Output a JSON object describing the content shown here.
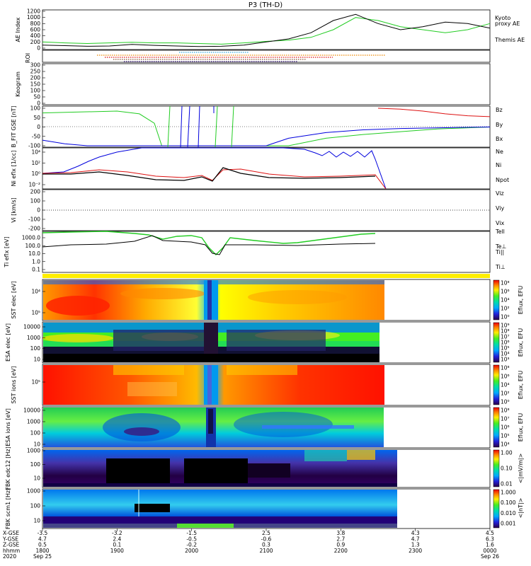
{
  "title": "P3 (TH-D)",
  "colors": {
    "red": "#dd1111",
    "green": "#22cc22",
    "blue": "#0000dd",
    "black": "#000000",
    "orange": "#ee8800",
    "purple": "#661199",
    "yellow": "#ffee00"
  },
  "panels": {
    "ae": {
      "ylabel": "AE Index",
      "legend": [
        {
          "text": "Kyoto",
          "color": "#22cc22"
        },
        {
          "text": "proxy AE",
          "color": "#22cc22"
        },
        {
          "text": "Themis AE",
          "color": "#000000"
        }
      ],
      "ticks": [
        "1200",
        "1000",
        "800",
        "600",
        "400",
        "200",
        "0"
      ]
    },
    "roi": {
      "ylabel": "ROI"
    },
    "keogram": {
      "ylabel": "Keogram",
      "ticks": [
        "300",
        "250",
        "200",
        "150",
        "100",
        "50",
        "0"
      ]
    },
    "bfit": {
      "ylabel": "B_FIT GSE [nT]",
      "ticks": [
        "100",
        "50",
        "0",
        "-50",
        "-100"
      ],
      "legend": [
        {
          "text": "Bz",
          "color": "#dd1111"
        },
        {
          "text": "By",
          "color": "#22cc22"
        },
        {
          "text": "Bx",
          "color": "#0000dd"
        }
      ]
    },
    "ni": {
      "ylabel": "Ni eflx [1/cc]",
      "ticks": [
        "10⁴",
        "10²",
        "10⁰",
        "10⁻²"
      ],
      "legend": [
        {
          "text": "Ne",
          "color": "#dd1111"
        },
        {
          "text": "Ni",
          "color": "#000000"
        },
        {
          "text": "Npot",
          "color": "#0000dd"
        }
      ]
    },
    "vi": {
      "ylabel": "Vi [km/s]",
      "ticks": [
        "200",
        "100",
        "0",
        "-100",
        "-200"
      ],
      "legend": [
        {
          "text": "Viz",
          "color": "#dd1111"
        },
        {
          "text": "Viy",
          "color": "#22cc22"
        },
        {
          "text": "Vix",
          "color": "#0000dd"
        }
      ]
    },
    "ti": {
      "ylabel": "Ti eflx [eV]",
      "ticks": [
        "1000.0",
        "100.0",
        "10.0",
        "1.0",
        "0.1"
      ],
      "legend": [
        {
          "text": "Tell",
          "color": "#000000"
        },
        {
          "text": "Te⊥",
          "color": "#dd1111"
        },
        {
          "text": "Ti||",
          "color": "#22cc22"
        },
        {
          "text": "Ti⊥",
          "color": "#0000dd"
        }
      ]
    },
    "sst_e": {
      "ylabel": "SST elec [eV]",
      "ticks": [
        "10⁴",
        "10⁵"
      ],
      "cbar_label": "Eflux, EFU",
      "cbar_ticks": [
        "10⁸",
        "10⁶",
        "10⁴",
        "10²",
        "10⁰"
      ]
    },
    "esa_e": {
      "ylabel": "ESA elec [eV]",
      "ticks": [
        "10000",
        "1000",
        "100",
        "10"
      ],
      "cbar_label": "Eflux, EFU",
      "cbar_ticks": [
        "10⁹",
        "10⁸",
        "10⁷",
        "10⁶",
        "10⁵",
        "10⁴",
        "10³"
      ]
    },
    "sst_i": {
      "ylabel": "SST ions [eV]",
      "ticks": [
        "10⁵"
      ],
      "cbar_label": "Eflux, EFU",
      "cbar_ticks": [
        "10⁸",
        "10⁶",
        "10⁴",
        "10²",
        "10⁰"
      ]
    },
    "esa_i": {
      "ylabel": "ESA ions [eV]",
      "ticks": [
        "10000",
        "1000",
        "100",
        "10"
      ],
      "cbar_label": "Eflux, EFU",
      "cbar_ticks": [
        "10⁸",
        "10⁷",
        "10⁶",
        "10⁵",
        "10⁴"
      ]
    },
    "fbk_e": {
      "ylabel": "FBK edc12 [Hz]",
      "ticks": [
        "1000",
        "100",
        "10"
      ],
      "cbar_label": "<|mV/m|>",
      "cbar_ticks": [
        "1.00",
        "0.10",
        "0.01"
      ]
    },
    "fbk_b": {
      "ylabel": "FBK scm1 [Hz]",
      "ticks": [
        "1000",
        "100",
        "10"
      ],
      "cbar_label": "<|nT|>",
      "cbar_ticks": [
        "1.000",
        "0.100",
        "0.010",
        "0.001"
      ]
    }
  },
  "xaxis": {
    "row_labels": [
      "X-GSE",
      "Y-GSE",
      "Z-GSE",
      "hhmm",
      "2020"
    ],
    "columns": [
      {
        "x": "-3.5",
        "y": "4.7",
        "z": "0.5",
        "t": "1800",
        "d": "Sep 25"
      },
      {
        "x": "-3.2",
        "y": "2.4",
        "z": "0.1",
        "t": "1900",
        "d": ""
      },
      {
        "x": "-1.5",
        "y": "-0.5",
        "z": "-0.2",
        "t": "2000",
        "d": ""
      },
      {
        "x": "2.5",
        "y": "-0.6",
        "z": "0.3",
        "t": "2100",
        "d": ""
      },
      {
        "x": "3.8",
        "y": "2.7",
        "z": "0.9",
        "t": "2200",
        "d": ""
      },
      {
        "x": "4.3",
        "y": "4.7",
        "z": "1.3",
        "t": "2300",
        "d": ""
      },
      {
        "x": "4.5",
        "y": "6.3",
        "z": "1.6",
        "t": "0000",
        "d": "Sep 26"
      }
    ]
  },
  "chart_data": [
    {
      "type": "line",
      "name": "AE Index",
      "ylim": [
        0,
        1200
      ],
      "series": [
        {
          "name": "Kyoto proxy AE",
          "color": "#22cc22",
          "x": [
            0,
            0.3,
            0.6,
            0.9,
            1.2,
            1.5,
            1.8,
            2.1,
            2.4,
            2.7,
            3.0,
            3.3,
            3.6,
            3.9,
            4.2,
            4.5,
            4.8,
            5.1,
            5.4,
            5.7,
            6.0
          ],
          "y": [
            200,
            170,
            150,
            170,
            190,
            170,
            170,
            150,
            130,
            170,
            220,
            260,
            350,
            600,
            1000,
            900,
            700,
            600,
            500,
            600,
            800
          ]
        },
        {
          "name": "Themis AE",
          "color": "#000000",
          "x": [
            0,
            0.3,
            0.6,
            0.9,
            1.2,
            1.5,
            1.8,
            2.1,
            2.4,
            2.7,
            3.0,
            3.3,
            3.6,
            3.9,
            4.2,
            4.5,
            4.8,
            5.1,
            5.4,
            5.7,
            6.0
          ],
          "y": [
            100,
            80,
            60,
            70,
            120,
            90,
            70,
            50,
            60,
            100,
            200,
            300,
            500,
            900,
            1100,
            800,
            600,
            700,
            850,
            800,
            650
          ]
        }
      ]
    },
    {
      "type": "line",
      "name": "B_FIT",
      "ylim": [
        -100,
        100
      ],
      "series": [
        {
          "name": "Bz",
          "color": "#dd1111",
          "x": [
            4.5,
            4.8,
            5.1,
            5.4,
            5.7,
            6.0
          ],
          "y": [
            100,
            95,
            85,
            70,
            60,
            55
          ]
        },
        {
          "name": "By",
          "color": "#22cc22",
          "x": [
            0,
            0.5,
            1.0,
            1.3,
            1.5,
            1.6,
            3.3,
            3.8,
            4.3,
            4.8,
            5.3,
            6.0
          ],
          "y": [
            75,
            80,
            85,
            70,
            20,
            -100,
            -100,
            -60,
            -40,
            -25,
            -10,
            0
          ]
        },
        {
          "name": "Bx",
          "color": "#0000dd",
          "x": [
            0,
            0.3,
            0.6,
            3.0,
            3.3,
            3.8,
            4.3,
            4.8,
            5.5,
            6.0
          ],
          "y": [
            -70,
            -90,
            -100,
            -100,
            -60,
            -30,
            -15,
            -8,
            -3,
            0
          ]
        }
      ]
    }
  ]
}
